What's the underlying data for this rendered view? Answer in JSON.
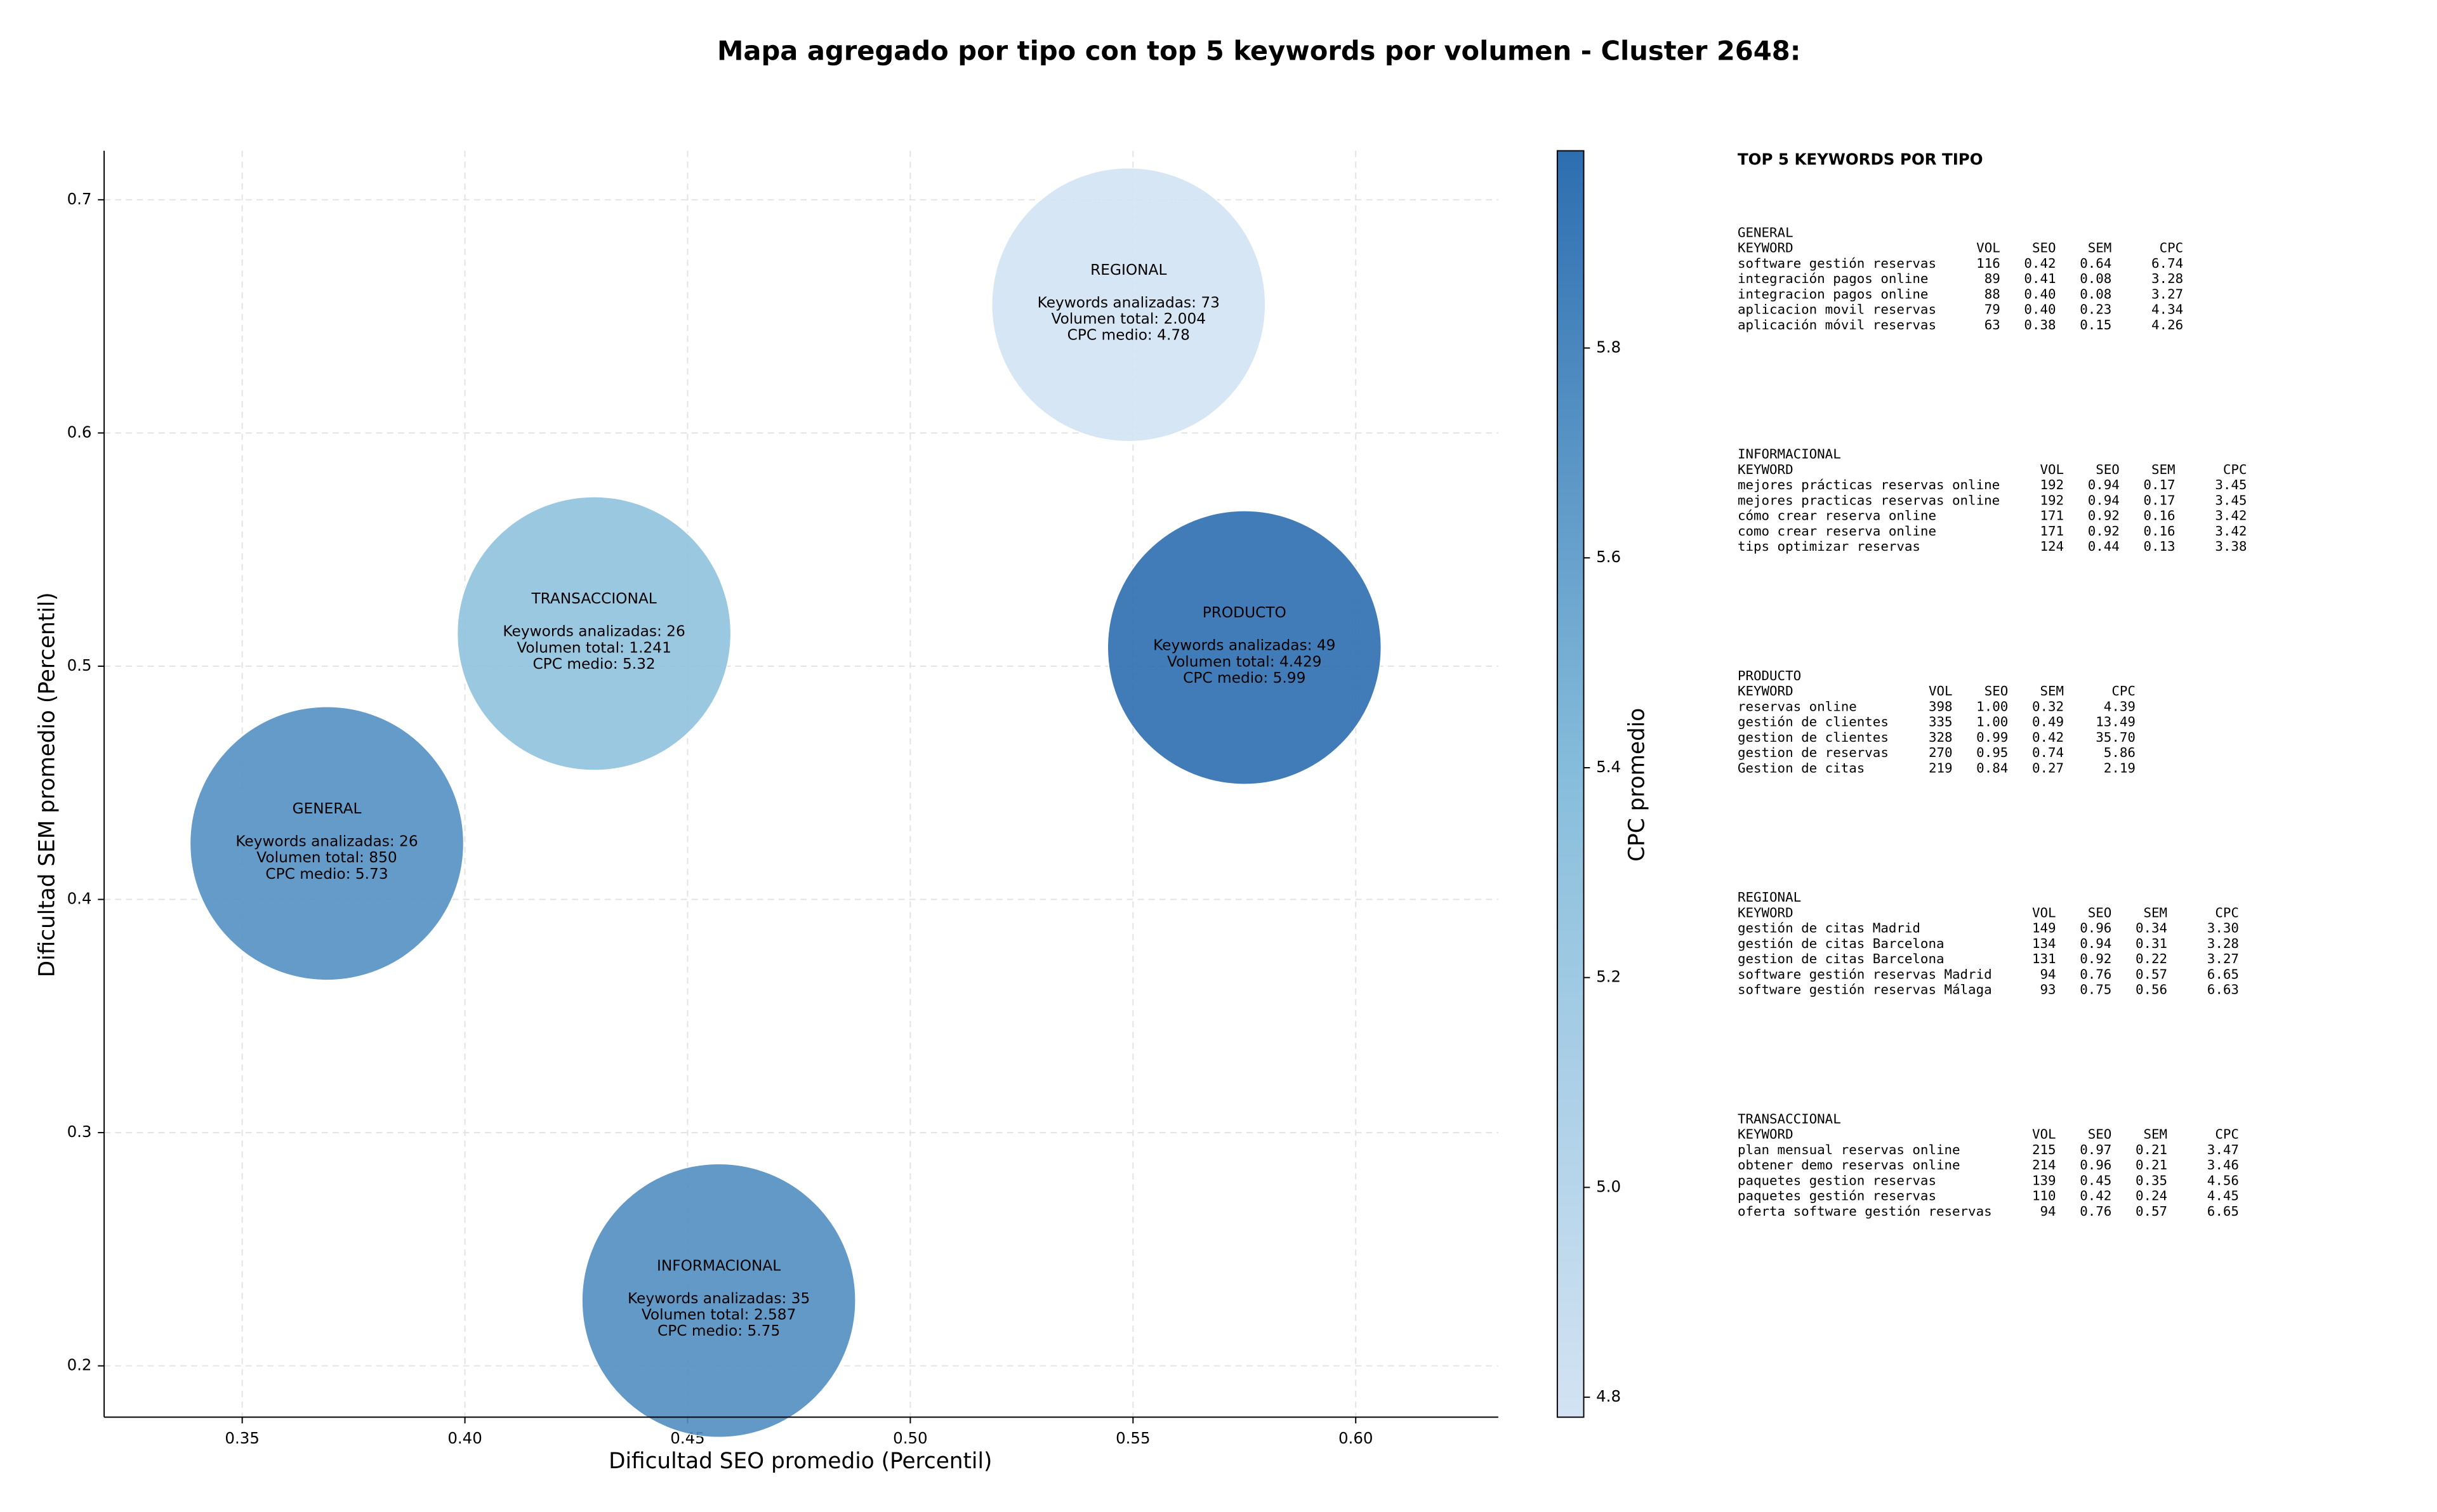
{
  "chart_data": {
    "type": "scatter",
    "title": "Mapa agregado por tipo con top 5 keywords por volumen - Cluster 2648:",
    "x_label": "Dificultad SEO promedio (Percentil)",
    "y_label": "Dificultad SEM promedio (Percentil)",
    "colorbar_label": "CPC promedio",
    "categories": [
      "GENERAL",
      "INFORMACIONAL",
      "PRODUCTO",
      "REGIONAL",
      "TRANSACCIONAL"
    ],
    "x": [
      0.369,
      0.457,
      0.575,
      0.549,
      0.429
    ],
    "values": [
      0.424,
      0.228,
      0.508,
      0.655,
      0.514
    ],
    "color_values": [
      5.73,
      5.75,
      5.99,
      4.78,
      5.32
    ],
    "annotations": [
      [
        "Keywords analizadas: 26",
        "Volumen total: 850",
        "CPC medio: 5.73"
      ],
      [
        "Keywords analizadas: 35",
        "Volumen total: 2.587",
        "CPC medio: 5.75"
      ],
      [
        "Keywords analizadas: 49",
        "Volumen total: 4.429",
        "CPC medio: 5.99"
      ],
      [
        "Keywords analizadas: 73",
        "Volumen total: 2.004",
        "CPC medio: 4.78"
      ],
      [
        "Keywords analizadas: 26",
        "Volumen total: 1.241",
        "CPC medio: 5.32"
      ]
    ],
    "xlim": [
      0.319,
      0.632
    ],
    "ylim": [
      0.178,
      0.721
    ],
    "xticks": [
      0.35,
      {
        "value": 0.4,
        "label": "0.40"
      },
      0.45,
      {
        "value": 0.5,
        "label": "0.50"
      },
      0.55,
      {
        "value": 0.6,
        "label": "0.60"
      }
    ],
    "yticks": [
      0.2,
      0.3,
      0.4,
      0.5,
      0.6,
      0.7
    ],
    "clim": [
      4.781,
      5.988
    ],
    "cticks": [
      4.8,
      {
        "value": 5.0,
        "label": "5.0"
      },
      5.2,
      5.4,
      5.6,
      5.8
    ],
    "colormap": [
      "#d3e3f3",
      "#88bedc",
      "#2d6eb0"
    ],
    "grid": true
  },
  "side_panel": {
    "title": "TOP 5 KEYWORDS POR TIPO",
    "sections": [
      {
        "name": "GENERAL",
        "columns": [
          "KEYWORD",
          "VOL",
          "SEO",
          "SEM",
          "CPC"
        ],
        "rows": [
          [
            "software gestión reservas",
            "116",
            "0.42",
            "0.64",
            "6.74"
          ],
          [
            "integración pagos online",
            "89",
            "0.41",
            "0.08",
            "3.28"
          ],
          [
            "integracion pagos online",
            "88",
            "0.40",
            "0.08",
            "3.27"
          ],
          [
            "aplicacion movil reservas",
            "79",
            "0.40",
            "0.23",
            "4.34"
          ],
          [
            "aplicación móvil reservas",
            "63",
            "0.38",
            "0.15",
            "4.26"
          ]
        ]
      },
      {
        "name": "INFORMACIONAL",
        "columns": [
          "KEYWORD",
          "VOL",
          "SEO",
          "SEM",
          "CPC"
        ],
        "rows": [
          [
            "mejores prácticas reservas online",
            "192",
            "0.94",
            "0.17",
            "3.45"
          ],
          [
            "mejores practicas reservas online",
            "192",
            "0.94",
            "0.17",
            "3.45"
          ],
          [
            "cómo crear reserva online",
            "171",
            "0.92",
            "0.16",
            "3.42"
          ],
          [
            "como crear reserva online",
            "171",
            "0.92",
            "0.16",
            "3.42"
          ],
          [
            "tips optimizar reservas",
            "124",
            "0.44",
            "0.13",
            "3.38"
          ]
        ]
      },
      {
        "name": "PRODUCTO",
        "columns": [
          "KEYWORD",
          "VOL",
          "SEO",
          "SEM",
          "CPC"
        ],
        "rows": [
          [
            "reservas online",
            "398",
            "1.00",
            "0.32",
            "4.39"
          ],
          [
            "gestión de clientes",
            "335",
            "1.00",
            "0.49",
            "13.49"
          ],
          [
            "gestion de clientes",
            "328",
            "0.99",
            "0.42",
            "35.70"
          ],
          [
            "gestion de reservas",
            "270",
            "0.95",
            "0.74",
            "5.86"
          ],
          [
            "Gestion de citas",
            "219",
            "0.84",
            "0.27",
            "2.19"
          ]
        ]
      },
      {
        "name": "REGIONAL",
        "columns": [
          "KEYWORD",
          "VOL",
          "SEO",
          "SEM",
          "CPC"
        ],
        "rows": [
          [
            "gestión de citas Madrid",
            "149",
            "0.96",
            "0.34",
            "3.30"
          ],
          [
            "gestión de citas Barcelona",
            "134",
            "0.94",
            "0.31",
            "3.28"
          ],
          [
            "gestion de citas Barcelona",
            "131",
            "0.92",
            "0.22",
            "3.27"
          ],
          [
            "software gestión reservas Madrid",
            "94",
            "0.76",
            "0.57",
            "6.65"
          ],
          [
            "software gestión reservas Málaga",
            "93",
            "0.75",
            "0.56",
            "6.63"
          ]
        ]
      },
      {
        "name": "TRANSACCIONAL",
        "columns": [
          "KEYWORD",
          "VOL",
          "SEO",
          "SEM",
          "CPC"
        ],
        "rows": [
          [
            "plan mensual reservas online",
            "215",
            "0.97",
            "0.21",
            "3.47"
          ],
          [
            "obtener demo reservas online",
            "214",
            "0.96",
            "0.21",
            "3.46"
          ],
          [
            "paquetes gestion reservas",
            "139",
            "0.45",
            "0.35",
            "4.56"
          ],
          [
            "paquetes gestión reservas",
            "110",
            "0.42",
            "0.24",
            "4.45"
          ],
          [
            "oferta software gestión reservas",
            "94",
            "0.76",
            "0.57",
            "6.65"
          ]
        ]
      }
    ]
  }
}
